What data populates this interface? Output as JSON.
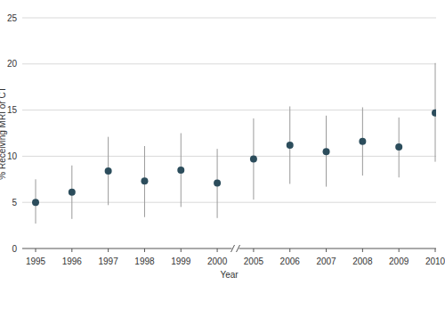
{
  "chart_data": {
    "type": "scatter",
    "x_label": "Year",
    "y_label": "% Receiving MRI or CT",
    "categories": [
      "1995",
      "1996",
      "1997",
      "1998",
      "1999",
      "2000",
      "2005",
      "2006",
      "2007",
      "2008",
      "2009",
      "2010"
    ],
    "values": [
      5.0,
      6.1,
      8.4,
      7.3,
      8.5,
      7.1,
      9.7,
      11.2,
      10.5,
      11.6,
      11.0,
      14.7
    ],
    "ci_lower": [
      2.7,
      3.2,
      4.7,
      3.4,
      4.5,
      3.3,
      5.3,
      7.0,
      6.7,
      7.9,
      7.7,
      9.4
    ],
    "ci_upper": [
      7.5,
      9.0,
      12.1,
      11.1,
      12.5,
      10.8,
      14.1,
      15.4,
      14.4,
      15.3,
      14.2,
      20.1
    ],
    "color": "#2c4d5c",
    "marker": "circle",
    "ylim": [
      0,
      25
    ],
    "yticks": [
      0,
      5,
      10,
      15,
      20,
      25
    ],
    "grid": true
  }
}
